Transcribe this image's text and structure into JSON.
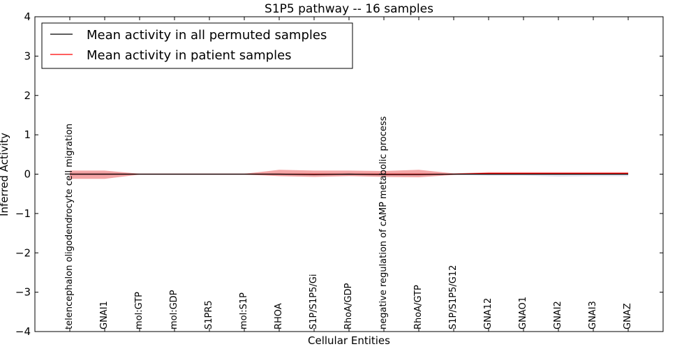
{
  "chart_data": {
    "type": "line",
    "title": "S1P5 pathway -- 16 samples",
    "xlabel": "Cellular Entities",
    "ylabel": "Inferred Activity",
    "ylim": [
      -4,
      4
    ],
    "yticks": [
      -4,
      -3,
      -2,
      -1,
      0,
      1,
      2,
      3,
      4
    ],
    "ytick_labels": [
      "−4",
      "−3",
      "−2",
      "−1",
      "0",
      "1",
      "2",
      "3",
      "4"
    ],
    "grid": false,
    "legend_position": "upper-left",
    "categories": [
      "telencephalon oligodendrocyte cell migration",
      "GNAI1",
      "mol:GTP",
      "mol:GDP",
      "S1PR5",
      "mol:S1P",
      "RHOA",
      "S1P/S1P5/Gi",
      "RhoA/GDP",
      "negative regulation of cAMP metabolic process",
      "RhoA/GTP",
      "S1P/S1P5/G12",
      "GNA12",
      "GNAO1",
      "GNAI2",
      "GNAI3",
      "GNAZ"
    ],
    "series": [
      {
        "name": "Mean activity in all permuted samples",
        "color": "#000000",
        "values": [
          0.0,
          0.0,
          0.0,
          0.0,
          0.0,
          0.0,
          0.0,
          -0.01,
          0.0,
          -0.01,
          -0.01,
          0.0,
          0.0,
          0.0,
          0.0,
          0.0,
          0.0
        ],
        "band_low": [
          -0.04,
          -0.04,
          -0.01,
          -0.01,
          -0.01,
          -0.01,
          -0.03,
          -0.04,
          -0.03,
          -0.04,
          -0.04,
          -0.02,
          -0.04,
          -0.04,
          -0.06,
          -0.05,
          -0.05
        ],
        "band_high": [
          0.04,
          0.04,
          0.01,
          0.01,
          0.01,
          0.01,
          0.03,
          0.03,
          0.03,
          0.03,
          0.03,
          0.02,
          0.02,
          0.02,
          0.02,
          0.02,
          0.02
        ],
        "band_color": "#c8c8dc"
      },
      {
        "name": "Mean activity in patient samples",
        "color": "#ff0000",
        "values": [
          0.0,
          0.0,
          0.0,
          0.0,
          0.0,
          0.0,
          0.0,
          0.0,
          0.0,
          0.0,
          0.0,
          0.0,
          0.02,
          0.02,
          0.02,
          0.02,
          0.02
        ],
        "band_low": [
          -0.12,
          -0.12,
          -0.01,
          -0.01,
          -0.01,
          -0.01,
          -0.05,
          -0.07,
          -0.05,
          -0.07,
          -0.08,
          -0.02,
          0.0,
          0.0,
          0.0,
          0.0,
          0.0
        ],
        "band_high": [
          0.09,
          0.09,
          0.01,
          0.01,
          0.01,
          0.01,
          0.11,
          0.09,
          0.09,
          0.08,
          0.11,
          0.02,
          0.05,
          0.05,
          0.05,
          0.05,
          0.05
        ],
        "band_color": "#f08080"
      }
    ]
  }
}
